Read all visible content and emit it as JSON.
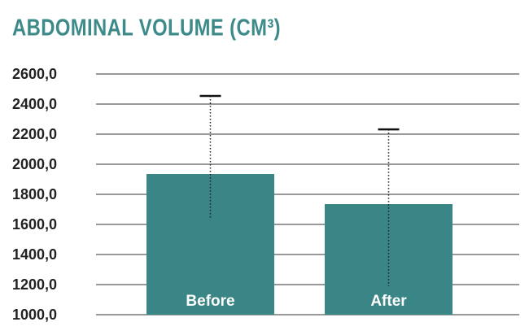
{
  "chart_data": {
    "type": "bar",
    "title": "ABDOMINAL VOLUME (CM³)",
    "categories": [
      "Before",
      "After"
    ],
    "values": [
      1935,
      1735
    ],
    "error_upper": [
      519,
      497
    ],
    "error_lower": [
      303,
      546
    ],
    "color": "#3a8585",
    "ylim": [
      1000,
      2600
    ],
    "yticks": [
      {
        "value": 1000,
        "label": "1000,0"
      },
      {
        "value": 1200,
        "label": "1200,0"
      },
      {
        "value": 1400,
        "label": "1400,0"
      },
      {
        "value": 1600,
        "label": "1600,0"
      },
      {
        "value": 1800,
        "label": "1800,0"
      },
      {
        "value": 2000,
        "label": "2000,0"
      },
      {
        "value": 2200,
        "label": "2200,0"
      },
      {
        "value": 2400,
        "label": "2400,0"
      },
      {
        "value": 2600,
        "label": "2600,0"
      }
    ],
    "grid": true
  }
}
